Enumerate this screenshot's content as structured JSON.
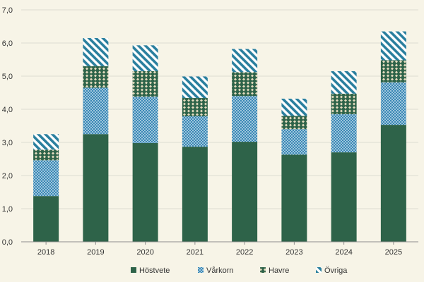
{
  "chart_data": {
    "type": "bar",
    "stacked": true,
    "title": "",
    "xlabel": "",
    "ylabel": "",
    "ylim": [
      0,
      7
    ],
    "yticks": [
      "0,0",
      "1,0",
      "2,0",
      "3,0",
      "4,0",
      "5,0",
      "6,0",
      "7,0"
    ],
    "ytick_values": [
      0,
      1,
      2,
      3,
      4,
      5,
      6,
      7
    ],
    "grid": true,
    "legend_position": "bottom",
    "categories": [
      "2018",
      "2019",
      "2020",
      "2021",
      "2022",
      "2023",
      "2024",
      "2025"
    ],
    "series": [
      {
        "name": "Höstvete",
        "color": "#2e6349",
        "pattern": "solid",
        "values": [
          1.38,
          3.25,
          2.98,
          2.87,
          3.02,
          2.63,
          2.7,
          3.53
        ]
      },
      {
        "name": "Vårkorn",
        "color": "#3a88b5",
        "pattern": "dots",
        "values": [
          1.08,
          1.4,
          1.4,
          0.92,
          1.38,
          0.77,
          1.15,
          1.28
        ]
      },
      {
        "name": "Havre",
        "color": "#2e6349",
        "pattern": "diamonds",
        "values": [
          0.32,
          0.65,
          0.77,
          0.55,
          0.72,
          0.4,
          0.62,
          0.67
        ]
      },
      {
        "name": "Övriga",
        "color": "#2a7f9e",
        "pattern": "diagonal",
        "values": [
          0.47,
          0.85,
          0.78,
          0.65,
          0.7,
          0.52,
          0.68,
          0.87
        ]
      }
    ]
  }
}
